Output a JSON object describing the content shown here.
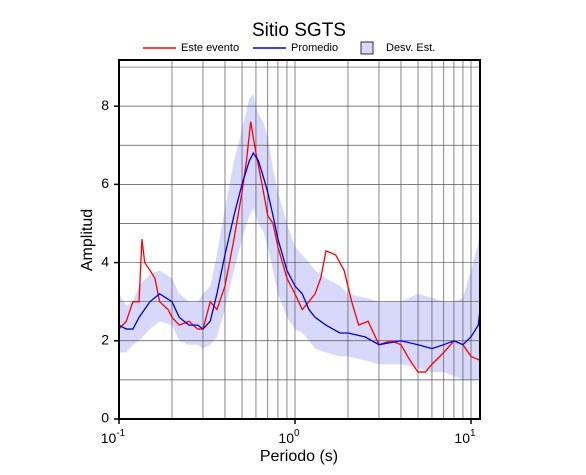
{
  "chart_data": {
    "type": "line",
    "title": "Sitio SGTS",
    "xlabel": "Periodo (s)",
    "ylabel": "Amplitud",
    "xscale": "log",
    "xlim": [
      0.1,
      11.25
    ],
    "ylim": [
      0,
      9.18
    ],
    "xticks": [
      {
        "value": 0.1,
        "label": "10",
        "exponent": "-1"
      },
      {
        "value": 1,
        "label": "10",
        "exponent": "0"
      },
      {
        "value": 10,
        "label": "10",
        "exponent": "1"
      }
    ],
    "yticks": [
      0,
      2,
      4,
      6,
      8
    ],
    "xgrid": [
      0.2,
      0.3,
      0.4,
      0.5,
      0.6,
      0.7,
      0.8,
      0.9,
      1,
      2,
      3,
      4,
      5,
      6,
      7,
      8,
      9,
      10
    ],
    "ygrid": [
      1,
      2,
      3,
      4,
      5,
      6,
      7,
      8,
      9
    ],
    "grid": true,
    "series": [
      {
        "name": "Este evento",
        "color": "#ff0000",
        "x": [
          0.1,
          0.11,
          0.12,
          0.13,
          0.135,
          0.14,
          0.15,
          0.16,
          0.17,
          0.19,
          0.2,
          0.22,
          0.25,
          0.28,
          0.3,
          0.33,
          0.36,
          0.4,
          0.45,
          0.5,
          0.53,
          0.56,
          0.6,
          0.65,
          0.7,
          0.75,
          0.8,
          0.9,
          1.0,
          1.1,
          1.2,
          1.3,
          1.4,
          1.5,
          1.7,
          1.9,
          2.1,
          2.3,
          2.6,
          3.0,
          3.5,
          4.0,
          4.5,
          5.0,
          5.5,
          6.0,
          7.0,
          8.0,
          9.0,
          10,
          11.25
        ],
        "values": [
          2.3,
          2.5,
          3.0,
          3.0,
          4.6,
          4.0,
          3.8,
          3.6,
          3.0,
          2.8,
          2.6,
          2.4,
          2.5,
          2.3,
          2.3,
          3.0,
          2.8,
          3.4,
          4.6,
          5.8,
          6.6,
          7.6,
          6.8,
          6.0,
          5.2,
          5.0,
          4.4,
          3.6,
          3.2,
          2.8,
          3.0,
          3.2,
          3.6,
          4.3,
          4.2,
          3.8,
          3.0,
          2.4,
          2.5,
          1.9,
          2.0,
          1.9,
          1.5,
          1.2,
          1.2,
          1.4,
          1.7,
          2.0,
          1.9,
          1.6,
          1.5
        ]
      },
      {
        "name": "Promedio",
        "color": "#0000dd",
        "x": [
          0.1,
          0.11,
          0.12,
          0.13,
          0.15,
          0.17,
          0.2,
          0.22,
          0.25,
          0.28,
          0.3,
          0.33,
          0.36,
          0.4,
          0.45,
          0.5,
          0.55,
          0.58,
          0.62,
          0.66,
          0.7,
          0.75,
          0.8,
          0.9,
          1.0,
          1.1,
          1.2,
          1.3,
          1.5,
          1.8,
          2.0,
          2.5,
          3.0,
          4.0,
          5.0,
          6.0,
          7,
          8,
          9,
          10,
          11,
          11.25
        ],
        "values": [
          2.4,
          2.3,
          2.3,
          2.6,
          3.0,
          3.2,
          3.0,
          2.6,
          2.4,
          2.4,
          2.3,
          2.5,
          3.2,
          4.2,
          5.2,
          6.0,
          6.6,
          6.8,
          6.6,
          6.2,
          5.8,
          5.2,
          4.6,
          3.8,
          3.4,
          3.2,
          2.8,
          2.6,
          2.4,
          2.2,
          2.2,
          2.1,
          1.9,
          2.0,
          1.9,
          1.8,
          1.9,
          2.0,
          1.9,
          2.1,
          2.4,
          2.8
        ]
      }
    ],
    "band": {
      "name": "Desv. Est.",
      "color": "#d8d8fa",
      "x": [
        0.1,
        0.11,
        0.12,
        0.13,
        0.15,
        0.17,
        0.2,
        0.22,
        0.25,
        0.28,
        0.3,
        0.33,
        0.36,
        0.4,
        0.45,
        0.5,
        0.55,
        0.58,
        0.62,
        0.66,
        0.7,
        0.75,
        0.8,
        0.9,
        1.0,
        1.1,
        1.2,
        1.3,
        1.5,
        1.8,
        2.0,
        2.5,
        3.0,
        4.0,
        5.0,
        6.0,
        7,
        8,
        9,
        10,
        11,
        11.25
      ],
      "lower": [
        1.7,
        1.7,
        1.9,
        2.0,
        2.3,
        2.5,
        2.4,
        2.0,
        1.9,
        1.9,
        1.8,
        1.9,
        2.1,
        2.8,
        3.8,
        4.6,
        5.2,
        5.4,
        5.0,
        4.8,
        4.4,
        3.8,
        3.2,
        2.6,
        2.3,
        2.2,
        2.0,
        1.8,
        1.7,
        1.6,
        1.6,
        1.5,
        1.4,
        1.4,
        1.3,
        1.2,
        1.2,
        1.1,
        1.0,
        1.0,
        1.0,
        1.1
      ],
      "upper": [
        3.2,
        2.9,
        3.0,
        3.4,
        3.7,
        3.8,
        3.6,
        3.2,
        3.0,
        3.0,
        3.2,
        3.4,
        4.2,
        5.4,
        6.6,
        7.4,
        8.2,
        8.3,
        7.8,
        7.6,
        7.2,
        6.4,
        5.8,
        5.0,
        4.4,
        4.2,
        4.0,
        3.8,
        3.6,
        3.4,
        3.2,
        3.1,
        3.0,
        3.0,
        3.2,
        3.1,
        3.0,
        3.0,
        3.1,
        3.8,
        4.5,
        5.0
      ]
    }
  }
}
